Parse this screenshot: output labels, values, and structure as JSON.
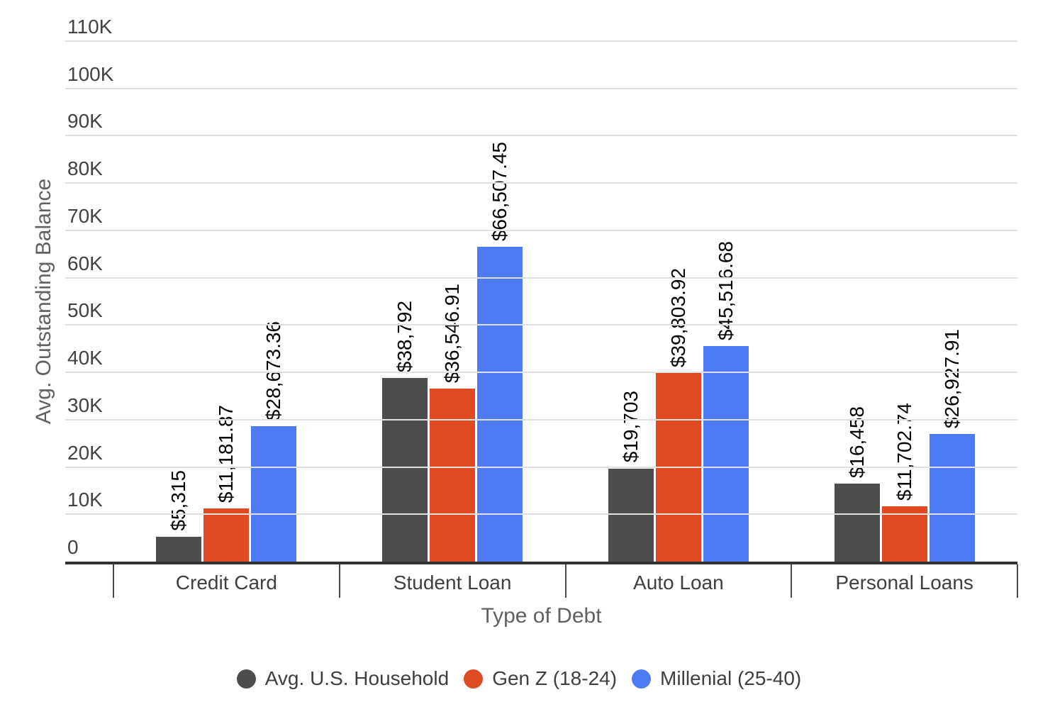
{
  "chart_data": {
    "type": "bar",
    "title": "",
    "xlabel": "Type of Debt",
    "ylabel": "Avg. Outstanding Balance",
    "categories": [
      "Credit Card",
      "Student Loan",
      "Auto Loan",
      "Personal Loans"
    ],
    "series": [
      {
        "name": "Avg. U.S. Household",
        "color": "#4d4d4d",
        "values": [
          5315,
          38792,
          19703,
          16458
        ],
        "labels": [
          "$5,315",
          "$38,792",
          "$19,703",
          "$16,458"
        ]
      },
      {
        "name": "Gen Z (18-24)",
        "color": "#e04a21",
        "values": [
          11181.87,
          36546.91,
          39803.92,
          11702.74
        ],
        "labels": [
          "$11,181.87",
          "$36,546.91",
          "$39,803.92",
          "$11,702.74"
        ]
      },
      {
        "name": "Millenial (25-40)",
        "color": "#4d7bf3",
        "values": [
          28673.36,
          66507.45,
          45516.68,
          26927.91
        ],
        "labels": [
          "$28,673.36",
          "$66,507.45",
          "$45,516.68",
          "$26,927.91"
        ]
      }
    ],
    "ylim": [
      0,
      110000
    ],
    "yticks": [
      {
        "value": 0,
        "label": "0"
      },
      {
        "value": 10000,
        "label": "10K"
      },
      {
        "value": 20000,
        "label": "20K"
      },
      {
        "value": 30000,
        "label": "30K"
      },
      {
        "value": 40000,
        "label": "40K"
      },
      {
        "value": 50000,
        "label": "50K"
      },
      {
        "value": 60000,
        "label": "60K"
      },
      {
        "value": 70000,
        "label": "70K"
      },
      {
        "value": 80000,
        "label": "80K"
      },
      {
        "value": 90000,
        "label": "90K"
      },
      {
        "value": 100000,
        "label": "100K"
      },
      {
        "value": 110000,
        "label": "110K"
      }
    ],
    "grid": true,
    "legend_position": "bottom",
    "grid_color": "#e0e0e0",
    "baseline_color": "#333333",
    "value_label_rotation": "vertical"
  }
}
